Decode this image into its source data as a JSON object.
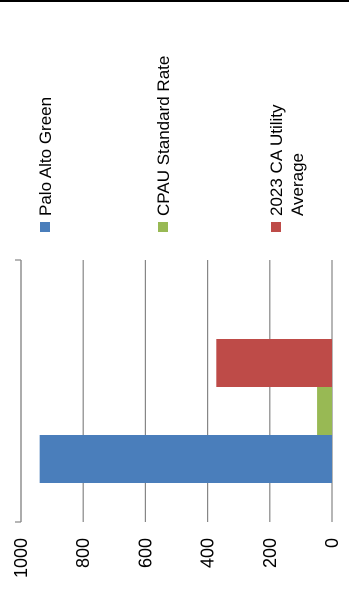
{
  "chart_data": {
    "type": "bar",
    "orientation": "rotated-90-ccw",
    "title": "",
    "xlabel": "",
    "ylabel": "",
    "ylim": [
      0,
      1000
    ],
    "yticks": [
      0,
      200,
      400,
      600,
      800,
      1000
    ],
    "ytick_labels": [
      "0",
      "200",
      "400",
      "600",
      "800",
      "1000"
    ],
    "grid": true,
    "legend_position": "top",
    "categories": [
      ""
    ],
    "series": [
      {
        "name": "Palo Alto Green",
        "values": [
          940
        ],
        "color": "#4a7ebb"
      },
      {
        "name": "CPAU Standard Rate",
        "values": [
          48
        ],
        "color": "#98b954"
      },
      {
        "name": "2023 CA Utility Average",
        "values": [
          372
        ],
        "color": "#be4b48"
      }
    ],
    "legend": [
      {
        "label": "Palo Alto Green",
        "lines": [
          "Palo Alto Green"
        ]
      },
      {
        "label": "CPAU Standard Rate",
        "lines": [
          "CPAU Standard Rate"
        ]
      },
      {
        "label": "2023 CA Utility Average",
        "lines": [
          "2023 CA Utility",
          "Average"
        ]
      }
    ]
  }
}
